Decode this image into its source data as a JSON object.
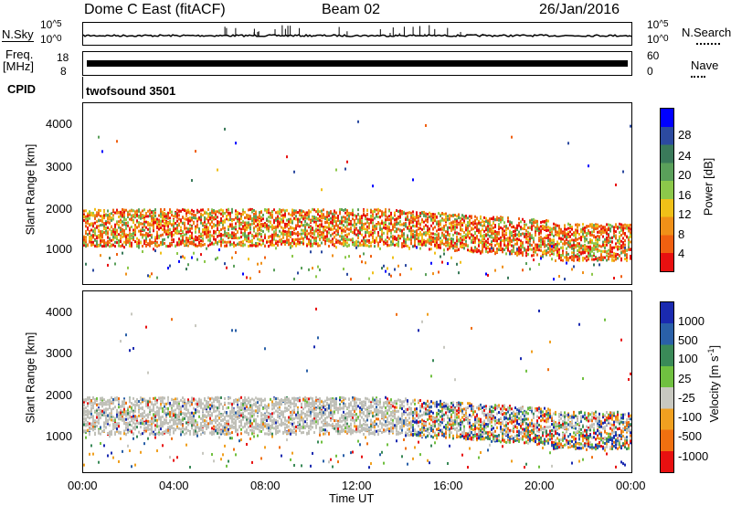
{
  "header": {
    "station": "Dome C East (fitACF)",
    "beam": "Beam 02",
    "date": "26/Jan/2016"
  },
  "top_panels": {
    "nsky_label": "N.Sky",
    "nsearch_label": "N.Search",
    "freq_label": "Freq.",
    "freq_unit": "[MHz]",
    "nave_label": "Nave",
    "cpid_label": "CPID",
    "cpid_value": "twofsound 3501",
    "noise_ticks": {
      "top_base": "10",
      "top_exp": "^5",
      "bottom_base": "10",
      "bottom_exp": "^0"
    },
    "freq_ticks": [
      "18",
      "8"
    ],
    "nave_ticks": [
      "60",
      "0"
    ]
  },
  "power_panel": {
    "ylabel": "Slant Range [km]",
    "yticks": [
      "4000",
      "3000",
      "2000",
      "1000"
    ],
    "colorbar_label": "Power [dB]",
    "colorbar_ticks": [
      "28",
      "24",
      "20",
      "16",
      "12",
      "8",
      "4"
    ]
  },
  "velocity_panel": {
    "ylabel": "Slant Range [km]",
    "yticks": [
      "4000",
      "3000",
      "2000",
      "1000"
    ],
    "colorbar_label": "Velocity [m s",
    "colorbar_label_sup": "-1",
    "colorbar_label_end": "]",
    "colorbar_ticks": [
      "1000",
      "500",
      "100",
      "25",
      "-25",
      "-100",
      "-500",
      "-1000"
    ]
  },
  "xaxis": {
    "ticks": [
      "00:00",
      "04:00",
      "08:00",
      "12:00",
      "16:00",
      "20:00",
      "00:00"
    ],
    "label": "Time UT"
  },
  "colors": {
    "power_scale": [
      "#0000ff",
      "#2c4aa0",
      "#3a7a5a",
      "#5aa05a",
      "#8cc84a",
      "#f0c018",
      "#f09018",
      "#f06010",
      "#e81010"
    ],
    "velocity_scale": [
      "#1a2ab0",
      "#2a60a8",
      "#3a8a58",
      "#70c040",
      "#c8c8c0",
      "#f0a020",
      "#f07010",
      "#e81010"
    ],
    "ground_scatter": "#c0c0b8"
  }
}
